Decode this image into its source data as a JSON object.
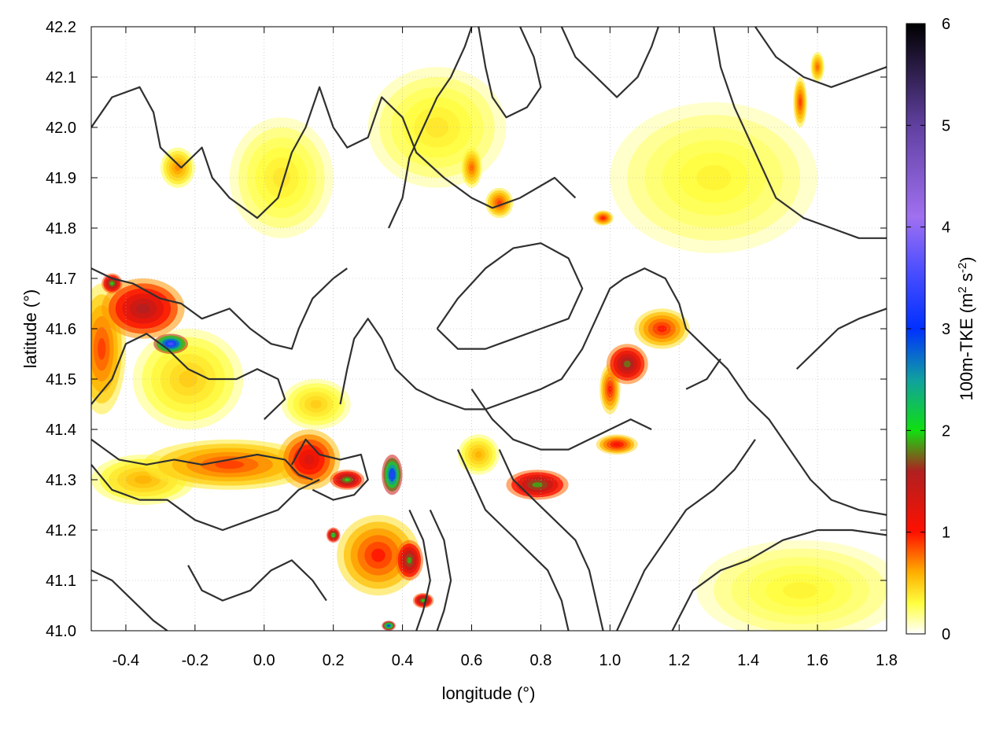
{
  "chart_data": {
    "type": "heatmap",
    "title": "",
    "xlabel": "longitude (°)",
    "ylabel": "latitude (°)",
    "xlim": [
      -0.5,
      1.8
    ],
    "ylim": [
      41.0,
      42.2
    ],
    "x_ticks": [
      -0.4,
      -0.2,
      0.0,
      0.2,
      0.4,
      0.6,
      0.8,
      1.0,
      1.2,
      1.4,
      1.6,
      1.8
    ],
    "x_tick_labels": [
      "-0.4",
      "-0.2",
      "0.0",
      "0.2",
      "0.4",
      "0.6",
      "0.8",
      "1.0",
      "1.2",
      "1.4",
      "1.6",
      "1.8"
    ],
    "y_ticks": [
      41.0,
      41.1,
      41.2,
      41.3,
      41.4,
      41.5,
      41.6,
      41.7,
      41.8,
      41.9,
      42.0,
      42.1,
      42.2
    ],
    "y_tick_labels": [
      "41.0",
      "41.1",
      "41.2",
      "41.3",
      "41.4",
      "41.5",
      "41.6",
      "41.7",
      "41.8",
      "41.9",
      "42.0",
      "42.1",
      "42.2"
    ],
    "grid": true,
    "colorbar": {
      "label_main": "100m-TKE (m",
      "label_sup1": "2",
      "label_mid": " s",
      "label_sup2": "-2",
      "label_end": ")",
      "range": [
        0,
        6
      ],
      "ticks": [
        0,
        1,
        2,
        3,
        4,
        5,
        6
      ],
      "tick_labels": [
        "0",
        "1",
        "2",
        "3",
        "4",
        "5",
        "6"
      ],
      "colors": [
        [
          0.0,
          "#ffffff"
        ],
        [
          0.3,
          "#ffff40"
        ],
        [
          0.6,
          "#ffb000"
        ],
        [
          1.0,
          "#ff1000"
        ],
        [
          1.6,
          "#b02020"
        ],
        [
          2.0,
          "#10e010"
        ],
        [
          2.5,
          "#10a0a0"
        ],
        [
          3.0,
          "#0030ff"
        ],
        [
          3.6,
          "#5050ff"
        ],
        [
          4.1,
          "#a070f0"
        ],
        [
          5.0,
          "#6040a0"
        ],
        [
          6.0,
          "#000000"
        ]
      ]
    },
    "hotspots": [
      {
        "lon": -0.47,
        "lat": 41.56,
        "value": 0.9,
        "rx": 0.07,
        "ry": 0.13
      },
      {
        "lon": -0.35,
        "lat": 41.64,
        "value": 1.6,
        "rx": 0.12,
        "ry": 0.06
      },
      {
        "lon": -0.27,
        "lat": 41.57,
        "value": 3.6,
        "rx": 0.05,
        "ry": 0.02
      },
      {
        "lon": -0.44,
        "lat": 41.69,
        "value": 2.0,
        "rx": 0.03,
        "ry": 0.02
      },
      {
        "lon": -0.22,
        "lat": 41.5,
        "value": 0.5,
        "rx": 0.16,
        "ry": 0.1
      },
      {
        "lon": -0.1,
        "lat": 41.33,
        "value": 0.9,
        "rx": 0.25,
        "ry": 0.05
      },
      {
        "lon": -0.35,
        "lat": 41.3,
        "value": 0.6,
        "rx": 0.15,
        "ry": 0.05
      },
      {
        "lon": 0.13,
        "lat": 41.34,
        "value": 1.3,
        "rx": 0.09,
        "ry": 0.06
      },
      {
        "lon": 0.24,
        "lat": 41.3,
        "value": 2.0,
        "rx": 0.05,
        "ry": 0.02
      },
      {
        "lon": 0.37,
        "lat": 41.31,
        "value": 3.3,
        "rx": 0.03,
        "ry": 0.04
      },
      {
        "lon": 0.2,
        "lat": 41.19,
        "value": 2.2,
        "rx": 0.02,
        "ry": 0.015
      },
      {
        "lon": 0.33,
        "lat": 41.15,
        "value": 1.0,
        "rx": 0.12,
        "ry": 0.08
      },
      {
        "lon": 0.42,
        "lat": 41.14,
        "value": 1.9,
        "rx": 0.04,
        "ry": 0.04
      },
      {
        "lon": 0.46,
        "lat": 41.06,
        "value": 2.0,
        "rx": 0.03,
        "ry": 0.015
      },
      {
        "lon": 0.36,
        "lat": 41.01,
        "value": 3.0,
        "rx": 0.02,
        "ry": 0.01
      },
      {
        "lon": 0.79,
        "lat": 41.29,
        "value": 1.9,
        "rx": 0.09,
        "ry": 0.03
      },
      {
        "lon": 1.05,
        "lat": 41.53,
        "value": 1.8,
        "rx": 0.06,
        "ry": 0.04
      },
      {
        "lon": 1.15,
        "lat": 41.6,
        "value": 1.0,
        "rx": 0.08,
        "ry": 0.04
      },
      {
        "lon": 1.0,
        "lat": 41.48,
        "value": 1.0,
        "rx": 0.03,
        "ry": 0.05
      },
      {
        "lon": 1.02,
        "lat": 41.37,
        "value": 1.1,
        "rx": 0.06,
        "ry": 0.02
      },
      {
        "lon": 0.68,
        "lat": 41.85,
        "value": 0.9,
        "rx": 0.04,
        "ry": 0.03
      },
      {
        "lon": 0.98,
        "lat": 41.82,
        "value": 1.0,
        "rx": 0.03,
        "ry": 0.015
      },
      {
        "lon": -0.25,
        "lat": 41.92,
        "value": 0.7,
        "rx": 0.05,
        "ry": 0.04
      },
      {
        "lon": 0.6,
        "lat": 41.92,
        "value": 0.8,
        "rx": 0.03,
        "ry": 0.04
      },
      {
        "lon": 1.55,
        "lat": 42.05,
        "value": 0.9,
        "rx": 0.02,
        "ry": 0.05
      },
      {
        "lon": 1.6,
        "lat": 42.12,
        "value": 0.8,
        "rx": 0.02,
        "ry": 0.03
      },
      {
        "lon": 0.05,
        "lat": 41.9,
        "value": 0.4,
        "rx": 0.15,
        "ry": 0.12
      },
      {
        "lon": 0.5,
        "lat": 42.0,
        "value": 0.4,
        "rx": 0.2,
        "ry": 0.12
      },
      {
        "lon": 1.3,
        "lat": 41.9,
        "value": 0.35,
        "rx": 0.3,
        "ry": 0.15
      },
      {
        "lon": 1.55,
        "lat": 41.08,
        "value": 0.35,
        "rx": 0.3,
        "ry": 0.1
      },
      {
        "lon": 0.62,
        "lat": 41.35,
        "value": 0.6,
        "rx": 0.06,
        "ry": 0.04
      },
      {
        "lon": 0.15,
        "lat": 41.45,
        "value": 0.5,
        "rx": 0.1,
        "ry": 0.05
      }
    ],
    "contours": [
      [
        [
          -0.5,
          42.0
        ],
        [
          -0.44,
          42.06
        ],
        [
          -0.36,
          42.08
        ],
        [
          -0.32,
          42.03
        ],
        [
          -0.3,
          41.96
        ],
        [
          -0.24,
          41.92
        ],
        [
          -0.18,
          41.96
        ],
        [
          -0.15,
          41.9
        ],
        [
          -0.1,
          41.86
        ],
        [
          -0.02,
          41.82
        ],
        [
          0.04,
          41.86
        ],
        [
          0.08,
          41.95
        ],
        [
          0.12,
          42.0
        ],
        [
          0.16,
          42.08
        ],
        [
          0.2,
          42.0
        ],
        [
          0.24,
          41.96
        ],
        [
          0.3,
          41.98
        ],
        [
          0.34,
          42.06
        ],
        [
          0.4,
          42.02
        ],
        [
          0.44,
          41.95
        ],
        [
          0.52,
          41.9
        ],
        [
          0.6,
          41.86
        ],
        [
          0.66,
          41.84
        ],
        [
          0.74,
          41.86
        ],
        [
          0.84,
          41.9
        ],
        [
          0.9,
          41.86
        ]
      ],
      [
        [
          -0.5,
          41.72
        ],
        [
          -0.44,
          41.7
        ],
        [
          -0.38,
          41.69
        ],
        [
          -0.3,
          41.66
        ],
        [
          -0.24,
          41.65
        ],
        [
          -0.18,
          41.62
        ],
        [
          -0.1,
          41.64
        ],
        [
          -0.04,
          41.6
        ],
        [
          0.02,
          41.57
        ],
        [
          0.08,
          41.56
        ],
        [
          0.1,
          41.6
        ],
        [
          0.14,
          41.66
        ],
        [
          0.2,
          41.7
        ],
        [
          0.24,
          41.72
        ]
      ],
      [
        [
          -0.5,
          41.45
        ],
        [
          -0.44,
          41.5
        ],
        [
          -0.4,
          41.57
        ],
        [
          -0.34,
          41.59
        ],
        [
          -0.28,
          41.56
        ],
        [
          -0.22,
          41.52
        ],
        [
          -0.16,
          41.5
        ],
        [
          -0.08,
          41.5
        ],
        [
          -0.02,
          41.52
        ],
        [
          0.04,
          41.5
        ],
        [
          0.06,
          41.46
        ],
        [
          0.0,
          41.42
        ]
      ],
      [
        [
          -0.5,
          41.38
        ],
        [
          -0.42,
          41.34
        ],
        [
          -0.34,
          41.33
        ],
        [
          -0.26,
          41.34
        ],
        [
          -0.18,
          41.33
        ],
        [
          -0.1,
          41.34
        ],
        [
          -0.02,
          41.35
        ],
        [
          0.06,
          41.34
        ],
        [
          0.1,
          41.31
        ],
        [
          0.14,
          41.3
        ]
      ],
      [
        [
          -0.5,
          41.33
        ],
        [
          -0.44,
          41.28
        ],
        [
          -0.36,
          41.26
        ],
        [
          -0.28,
          41.26
        ],
        [
          -0.2,
          41.22
        ],
        [
          -0.12,
          41.2
        ],
        [
          -0.04,
          41.22
        ],
        [
          0.04,
          41.24
        ],
        [
          0.1,
          41.28
        ],
        [
          0.16,
          41.3
        ]
      ],
      [
        [
          0.08,
          41.33
        ],
        [
          0.12,
          41.38
        ],
        [
          0.16,
          41.35
        ],
        [
          0.22,
          41.34
        ],
        [
          0.28,
          41.35
        ],
        [
          0.3,
          41.3
        ],
        [
          0.26,
          41.27
        ],
        [
          0.2,
          41.26
        ],
        [
          0.14,
          41.28
        ]
      ],
      [
        [
          0.22,
          41.45
        ],
        [
          0.24,
          41.52
        ],
        [
          0.26,
          41.58
        ],
        [
          0.3,
          41.62
        ],
        [
          0.34,
          41.58
        ],
        [
          0.38,
          41.52
        ],
        [
          0.44,
          41.48
        ],
        [
          0.5,
          41.46
        ],
        [
          0.58,
          41.44
        ],
        [
          0.64,
          41.44
        ],
        [
          0.72,
          41.46
        ],
        [
          0.8,
          41.48
        ],
        [
          0.86,
          41.5
        ],
        [
          0.92,
          41.56
        ],
        [
          0.96,
          41.62
        ],
        [
          1.0,
          41.68
        ],
        [
          1.04,
          41.7
        ],
        [
          1.1,
          41.72
        ],
        [
          1.16,
          41.7
        ],
        [
          1.2,
          41.65
        ],
        [
          1.22,
          41.6
        ],
        [
          1.28,
          41.56
        ],
        [
          1.34,
          41.52
        ],
        [
          1.4,
          41.46
        ],
        [
          1.46,
          41.42
        ],
        [
          1.52,
          41.36
        ],
        [
          1.58,
          41.3
        ],
        [
          1.64,
          41.26
        ],
        [
          1.72,
          41.24
        ],
        [
          1.8,
          41.23
        ]
      ],
      [
        [
          0.5,
          41.6
        ],
        [
          0.56,
          41.66
        ],
        [
          0.64,
          41.72
        ],
        [
          0.72,
          41.76
        ],
        [
          0.8,
          41.77
        ],
        [
          0.88,
          41.74
        ],
        [
          0.92,
          41.68
        ],
        [
          0.88,
          41.62
        ],
        [
          0.8,
          41.6
        ],
        [
          0.72,
          41.58
        ],
        [
          0.64,
          41.56
        ],
        [
          0.56,
          41.56
        ],
        [
          0.5,
          41.6
        ]
      ],
      [
        [
          0.6,
          41.48
        ],
        [
          0.66,
          41.42
        ],
        [
          0.72,
          41.38
        ],
        [
          0.8,
          41.36
        ],
        [
          0.88,
          41.36
        ],
        [
          0.94,
          41.38
        ],
        [
          1.0,
          41.4
        ],
        [
          1.06,
          41.42
        ],
        [
          1.12,
          41.4
        ]
      ],
      [
        [
          0.56,
          41.36
        ],
        [
          0.6,
          41.3
        ],
        [
          0.64,
          41.24
        ],
        [
          0.7,
          41.2
        ],
        [
          0.76,
          41.16
        ],
        [
          0.82,
          41.12
        ],
        [
          0.86,
          41.06
        ],
        [
          0.88,
          41.0
        ]
      ],
      [
        [
          0.68,
          41.36
        ],
        [
          0.72,
          41.3
        ],
        [
          0.78,
          41.26
        ],
        [
          0.84,
          41.22
        ],
        [
          0.9,
          41.18
        ],
        [
          0.94,
          41.12
        ],
        [
          0.96,
          41.06
        ],
        [
          0.98,
          41.0
        ]
      ],
      [
        [
          1.02,
          41.0
        ],
        [
          1.06,
          41.06
        ],
        [
          1.1,
          41.12
        ],
        [
          1.16,
          41.18
        ],
        [
          1.22,
          41.24
        ],
        [
          1.3,
          41.28
        ],
        [
          1.36,
          41.32
        ],
        [
          1.42,
          41.38
        ]
      ],
      [
        [
          1.18,
          41.0
        ],
        [
          1.24,
          41.08
        ],
        [
          1.32,
          41.12
        ],
        [
          1.4,
          41.14
        ],
        [
          1.5,
          41.18
        ],
        [
          1.6,
          41.2
        ],
        [
          1.7,
          41.2
        ],
        [
          1.8,
          41.19
        ]
      ],
      [
        [
          0.48,
          41.24
        ],
        [
          0.52,
          41.18
        ],
        [
          0.54,
          41.1
        ],
        [
          0.52,
          41.04
        ],
        [
          0.5,
          41.0
        ]
      ],
      [
        [
          0.42,
          41.24
        ],
        [
          0.46,
          41.18
        ],
        [
          0.48,
          41.1
        ],
        [
          0.46,
          41.04
        ],
        [
          0.44,
          41.0
        ]
      ],
      [
        [
          0.36,
          41.8
        ],
        [
          0.4,
          41.86
        ],
        [
          0.42,
          41.94
        ],
        [
          0.46,
          42.0
        ],
        [
          0.5,
          42.06
        ],
        [
          0.54,
          42.1
        ],
        [
          0.58,
          42.16
        ],
        [
          0.6,
          42.2
        ]
      ],
      [
        [
          0.74,
          42.2
        ],
        [
          0.78,
          42.14
        ],
        [
          0.8,
          42.08
        ],
        [
          0.76,
          42.04
        ],
        [
          0.7,
          42.02
        ],
        [
          0.66,
          42.06
        ],
        [
          0.64,
          42.12
        ],
        [
          0.62,
          42.2
        ]
      ],
      [
        [
          0.86,
          42.2
        ],
        [
          0.9,
          42.14
        ],
        [
          0.96,
          42.1
        ],
        [
          1.02,
          42.06
        ],
        [
          1.08,
          42.1
        ],
        [
          1.12,
          42.16
        ],
        [
          1.14,
          42.2
        ]
      ],
      [
        [
          1.3,
          42.2
        ],
        [
          1.32,
          42.12
        ],
        [
          1.36,
          42.04
        ],
        [
          1.4,
          41.98
        ],
        [
          1.44,
          41.92
        ],
        [
          1.48,
          41.86
        ],
        [
          1.56,
          41.82
        ],
        [
          1.64,
          41.8
        ],
        [
          1.72,
          41.78
        ],
        [
          1.8,
          41.78
        ]
      ],
      [
        [
          1.42,
          42.2
        ],
        [
          1.48,
          42.14
        ],
        [
          1.56,
          42.1
        ],
        [
          1.64,
          42.08
        ],
        [
          1.72,
          42.1
        ],
        [
          1.8,
          42.12
        ]
      ],
      [
        [
          1.22,
          41.48
        ],
        [
          1.28,
          41.5
        ],
        [
          1.32,
          41.54
        ]
      ],
      [
        [
          1.54,
          41.52
        ],
        [
          1.6,
          41.56
        ],
        [
          1.66,
          41.6
        ],
        [
          1.72,
          41.62
        ],
        [
          1.8,
          41.64
        ]
      ],
      [
        [
          -0.22,
          41.13
        ],
        [
          -0.18,
          41.08
        ],
        [
          -0.12,
          41.06
        ],
        [
          -0.04,
          41.08
        ],
        [
          0.02,
          41.12
        ],
        [
          0.08,
          41.14
        ],
        [
          0.14,
          41.1
        ],
        [
          0.18,
          41.06
        ]
      ],
      [
        [
          -0.5,
          41.12
        ],
        [
          -0.44,
          41.1
        ],
        [
          -0.38,
          41.06
        ],
        [
          -0.32,
          41.02
        ],
        [
          -0.28,
          41.0
        ]
      ]
    ]
  }
}
